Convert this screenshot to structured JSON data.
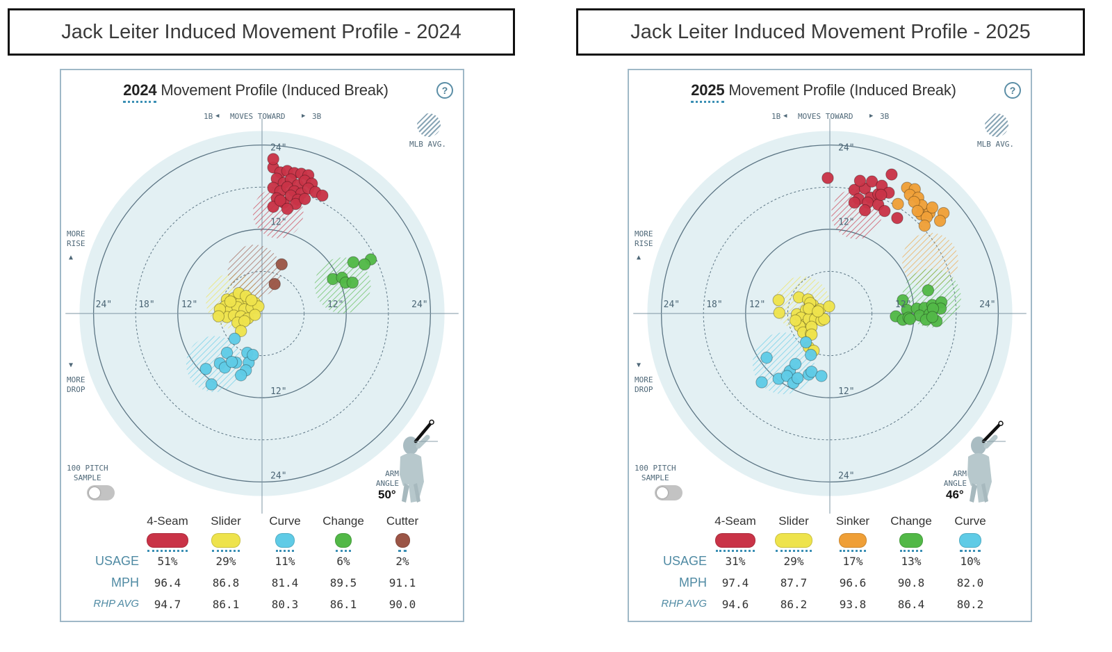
{
  "colors": {
    "four_seam": "#c93347",
    "slider": "#eee34c",
    "sinker": "#ef9f37",
    "change": "#52b847",
    "curve": "#5fcbe6",
    "cutter": "#9b5546",
    "mlb_swatch": "#8aa6b6",
    "accent": "#3b8fb4"
  },
  "banners": {
    "left": "Jack Leiter Induced Movement Profile - 2024",
    "right": "Jack Leiter Induced Movement Profile - 2025"
  },
  "chart_data": [
    {
      "type": "scatter",
      "year": "2024",
      "title": "Movement Profile (Induced Break)",
      "help": "?",
      "direction_labels": {
        "left": "1B",
        "mid": "MOVES TOWARD",
        "right": "3B"
      },
      "mlb_avg_label": "MLB AVG.",
      "more_rise": [
        "MORE",
        "RISE"
      ],
      "more_drop": [
        "MORE",
        "DROP"
      ],
      "sample_label": [
        "100 PITCH",
        "SAMPLE"
      ],
      "arm_label": [
        "ARM",
        "ANGLE"
      ],
      "arm_angle": "50°",
      "arm_angle_deg": 50,
      "axis_range_inches": [
        -27,
        27
      ],
      "ring_labels": {
        "top24": "24\"",
        "top12": "12\"",
        "bottom12": "12\"",
        "bottom24": "24\"",
        "left24": "24\"",
        "left18": "18\"",
        "left12": "12\"",
        "right12": "12\"",
        "right24": "24\""
      },
      "row_labels": {
        "usage": "USAGE",
        "mph": "MPH",
        "rhp": "RHP AVG"
      },
      "pitches": [
        {
          "name": "4-Seam",
          "key": "four_seam",
          "usage": "51%",
          "mph": "96.4",
          "rhp_avg": "94.7",
          "mlb_avg": {
            "x": 2.3,
            "y": 14.3,
            "r": 3.6
          },
          "points": [
            [
              1.6,
              20.8
            ],
            [
              2.6,
              20.1
            ],
            [
              3.6,
              20.3
            ],
            [
              4.6,
              20.0
            ],
            [
              5.6,
              19.9
            ],
            [
              6.6,
              19.7
            ],
            [
              2.1,
              19.2
            ],
            [
              3.1,
              18.6
            ],
            [
              4.1,
              19.1
            ],
            [
              5.1,
              18.3
            ],
            [
              6.1,
              18.9
            ],
            [
              7.1,
              18.5
            ],
            [
              1.6,
              17.9
            ],
            [
              2.6,
              17.4
            ],
            [
              3.6,
              18.0
            ],
            [
              4.6,
              17.4
            ],
            [
              5.6,
              17.1
            ],
            [
              6.6,
              17.8
            ],
            [
              2.1,
              16.4
            ],
            [
              3.1,
              15.8
            ],
            [
              4.1,
              16.8
            ],
            [
              5.1,
              16.2
            ],
            [
              7.6,
              17.3
            ],
            [
              8.6,
              16.8
            ],
            [
              1.6,
              15.2
            ],
            [
              2.6,
              16.1
            ],
            [
              4.8,
              15.6
            ],
            [
              6.1,
              16.3
            ],
            [
              3.6,
              14.9
            ],
            [
              1.6,
              22.0
            ]
          ]
        },
        {
          "name": "Slider",
          "key": "slider",
          "usage": "29%",
          "mph": "86.8",
          "rhp_avg": "86.1",
          "mlb_avg": {
            "x": -4.0,
            "y": 1.8,
            "r": 4.0
          },
          "points": [
            [
              -5.0,
              2.0
            ],
            [
              -4.0,
              2.2
            ],
            [
              -3.0,
              1.6
            ],
            [
              -2.0,
              2.0
            ],
            [
              -1.0,
              1.5
            ],
            [
              -5.3,
              1.0
            ],
            [
              -4.5,
              0.5
            ],
            [
              -3.5,
              0.9
            ],
            [
              -2.5,
              0.6
            ],
            [
              -1.5,
              0.8
            ],
            [
              -0.5,
              1.0
            ],
            [
              -5.0,
              -0.5
            ],
            [
              -4.0,
              -0.3
            ],
            [
              -3.0,
              -0.4
            ],
            [
              -2.0,
              -0.7
            ],
            [
              -1.0,
              -0.2
            ],
            [
              -3.5,
              -1.3
            ],
            [
              -2.5,
              -1.1
            ],
            [
              -4.5,
              1.7
            ],
            [
              -3.3,
              2.9
            ],
            [
              -2.3,
              2.5
            ],
            [
              -1.5,
              1.9
            ],
            [
              -3.0,
              -2.5
            ],
            [
              -6.0,
              0.6
            ],
            [
              -6.2,
              -0.4
            ]
          ]
        },
        {
          "name": "Curve",
          "key": "curve",
          "usage": "11%",
          "mph": "81.4",
          "rhp_avg": "80.3",
          "mlb_avg": {
            "x": -6.8,
            "y": -7.2,
            "r": 4.0
          },
          "points": [
            [
              -3.9,
              -3.6
            ],
            [
              -5.0,
              -5.6
            ],
            [
              -2.1,
              -5.6
            ],
            [
              -1.9,
              -7.0
            ],
            [
              -3.7,
              -7.0
            ],
            [
              -6.0,
              -7.1
            ],
            [
              -5.3,
              -7.7
            ],
            [
              -8.0,
              -7.9
            ],
            [
              -2.3,
              -8.1
            ],
            [
              -3.0,
              -8.8
            ],
            [
              -7.2,
              -10.1
            ],
            [
              -1.3,
              -5.9
            ],
            [
              -4.3,
              -6.9
            ]
          ]
        },
        {
          "name": "Change",
          "key": "change",
          "usage": "6%",
          "mph": "89.5",
          "rhp_avg": "86.1",
          "mlb_avg": {
            "x": 11.5,
            "y": 4.0,
            "r": 4.0
          },
          "points": [
            [
              10.1,
              4.9
            ],
            [
              11.4,
              5.1
            ],
            [
              15.5,
              7.7
            ],
            [
              14.6,
              7.0
            ],
            [
              13.0,
              7.3
            ],
            [
              11.9,
              4.4
            ],
            [
              12.9,
              4.4
            ]
          ]
        },
        {
          "name": "Cutter",
          "key": "cutter",
          "usage": "2%",
          "mph": "91.1",
          "rhp_avg": "90.0",
          "mlb_avg": {
            "x": -1.1,
            "y": 6.0,
            "r": 3.8
          },
          "points": [
            [
              2.8,
              7.0
            ],
            [
              1.8,
              4.2
            ]
          ]
        }
      ]
    },
    {
      "type": "scatter",
      "year": "2025",
      "title": "Movement Profile (Induced Break)",
      "help": "?",
      "direction_labels": {
        "left": "1B",
        "mid": "MOVES TOWARD",
        "right": "3B"
      },
      "mlb_avg_label": "MLB AVG.",
      "more_rise": [
        "MORE",
        "RISE"
      ],
      "more_drop": [
        "MORE",
        "DROP"
      ],
      "sample_label": [
        "100 PITCH",
        "SAMPLE"
      ],
      "arm_label": [
        "ARM",
        "ANGLE"
      ],
      "arm_angle": "46°",
      "arm_angle_deg": 46,
      "axis_range_inches": [
        -27,
        27
      ],
      "ring_labels": {
        "top24": "24\"",
        "top12": "12\"",
        "bottom12": "12\"",
        "bottom24": "24\"",
        "left24": "24\"",
        "left18": "18\"",
        "left12": "12\"",
        "right12": "12\"",
        "right24": "24\""
      },
      "row_labels": {
        "usage": "USAGE",
        "mph": "MPH",
        "rhp": "RHP AVG"
      },
      "pitches": [
        {
          "name": "4-Seam",
          "key": "four_seam",
          "usage": "31%",
          "mph": "97.4",
          "rhp_avg": "94.6",
          "mlb_avg": {
            "x": 3.8,
            "y": 14.2,
            "r": 3.6
          },
          "points": [
            [
              3.5,
              17.6
            ],
            [
              4.1,
              16.3
            ],
            [
              5.0,
              17.8
            ],
            [
              5.8,
              16.5
            ],
            [
              6.9,
              17.0
            ],
            [
              4.3,
              18.9
            ],
            [
              6.0,
              18.8
            ],
            [
              7.4,
              18.2
            ],
            [
              3.5,
              15.8
            ],
            [
              5.4,
              15.8
            ],
            [
              6.9,
              15.5
            ],
            [
              5.0,
              14.7
            ],
            [
              8.4,
              17.2
            ],
            [
              7.3,
              16.9
            ],
            [
              -0.3,
              19.3
            ],
            [
              8.8,
              19.8
            ],
            [
              9.6,
              13.6
            ],
            [
              7.8,
              14.6
            ]
          ]
        },
        {
          "name": "Slider",
          "key": "slider",
          "usage": "29%",
          "mph": "87.7",
          "rhp_avg": "86.2",
          "mlb_avg": {
            "x": -3.9,
            "y": 1.4,
            "r": 3.9
          },
          "points": [
            [
              -7.3,
              1.9
            ],
            [
              -7.2,
              0.1
            ],
            [
              -4.4,
              2.3
            ],
            [
              -4.7,
              -0.1
            ],
            [
              -3.1,
              2.0
            ],
            [
              -3.4,
              0.5
            ],
            [
              -2.4,
              1.2
            ],
            [
              -2.1,
              0.0
            ],
            [
              -1.4,
              0.6
            ],
            [
              -0.1,
              1.0
            ],
            [
              -4.1,
              -0.6
            ],
            [
              -3.6,
              -1.6
            ],
            [
              -3.0,
              -0.8
            ],
            [
              -2.1,
              -0.8
            ],
            [
              -1.2,
              -1.0
            ],
            [
              -4.3,
              -1.8
            ],
            [
              -3.8,
              -2.7
            ],
            [
              -2.7,
              -2.9
            ],
            [
              -2.6,
              -1.9
            ],
            [
              -0.8,
              -0.8
            ],
            [
              -2.6,
              -3.0
            ],
            [
              -3.0,
              -4.8
            ],
            [
              -2.3,
              -5.3
            ],
            [
              -2.8,
              1.5
            ],
            [
              -3.0,
              0.7
            ],
            [
              -1.7,
              0.3
            ],
            [
              -4.9,
              -1.0
            ]
          ]
        },
        {
          "name": "Sinker",
          "key": "sinker",
          "usage": "17%",
          "mph": "96.6",
          "rhp_avg": "93.8",
          "mlb_avg": {
            "x": 14.3,
            "y": 7.5,
            "r": 4.0
          },
          "points": [
            [
              11.0,
              17.9
            ],
            [
              12.1,
              17.7
            ],
            [
              11.4,
              16.9
            ],
            [
              12.6,
              16.5
            ],
            [
              13.1,
              15.4
            ],
            [
              12.0,
              15.9
            ],
            [
              13.0,
              14.1
            ],
            [
              14.2,
              14.3
            ],
            [
              16.2,
              14.3
            ],
            [
              15.7,
              13.2
            ],
            [
              13.8,
              13.7
            ],
            [
              12.5,
              14.6
            ],
            [
              14.6,
              15.1
            ],
            [
              13.5,
              12.5
            ],
            [
              9.7,
              15.6
            ]
          ]
        },
        {
          "name": "Change",
          "key": "change",
          "usage": "13%",
          "mph": "90.8",
          "rhp_avg": "86.4",
          "mlb_avg": {
            "x": 14.5,
            "y": 2.2,
            "r": 4.2
          },
          "points": [
            [
              14.0,
              3.3
            ],
            [
              10.4,
              1.9
            ],
            [
              11.0,
              0.5
            ],
            [
              12.4,
              0.7
            ],
            [
              13.5,
              0.8
            ],
            [
              14.6,
              1.2
            ],
            [
              15.9,
              1.6
            ],
            [
              9.4,
              -0.4
            ],
            [
              10.4,
              -0.9
            ],
            [
              11.2,
              -0.6
            ],
            [
              12.8,
              -0.3
            ],
            [
              14.2,
              -0.1
            ],
            [
              15.8,
              0.7
            ],
            [
              14.7,
              0.7
            ],
            [
              11.4,
              -0.8
            ],
            [
              13.7,
              -0.9
            ],
            [
              15.2,
              -1.1
            ],
            [
              14.6,
              -0.5
            ]
          ]
        },
        {
          "name": "Curve",
          "key": "curve",
          "usage": "10%",
          "mph": "82.0",
          "rhp_avg": "80.2",
          "mlb_avg": {
            "x": -6.6,
            "y": -7.1,
            "r": 4.4
          },
          "points": [
            [
              -3.4,
              -4.1
            ],
            [
              -5.7,
              -8.2
            ],
            [
              -9.7,
              -9.8
            ],
            [
              -7.3,
              -9.3
            ],
            [
              -9.0,
              -6.3
            ],
            [
              -6.1,
              -8.9
            ],
            [
              -3.0,
              -8.7
            ],
            [
              -2.6,
              -8.3
            ],
            [
              -5.2,
              -9.9
            ],
            [
              -2.7,
              -5.9
            ],
            [
              -4.6,
              -9.2
            ],
            [
              -4.9,
              -7.2
            ],
            [
              -1.2,
              -8.9
            ]
          ]
        }
      ]
    }
  ]
}
